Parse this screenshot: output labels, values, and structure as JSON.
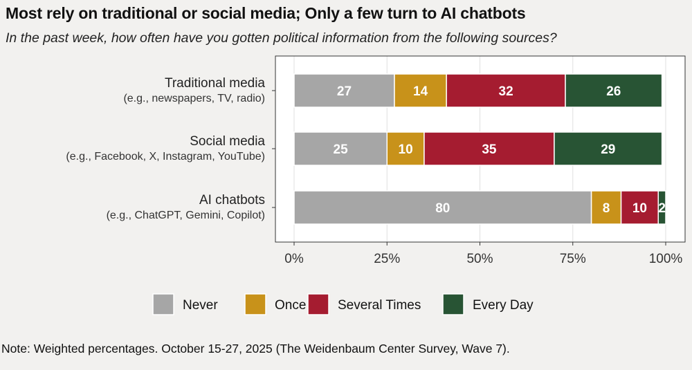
{
  "title": "Most rely on traditional or social media; Only a few turn to AI chatbots",
  "subtitle": "In the past week, how often have you gotten political information from the following sources?",
  "note": "Note: Weighted percentages. October 15-27, 2025 (The Weidenbaum Center Survey, Wave 7).",
  "chart_data": {
    "type": "bar",
    "orientation": "horizontal",
    "stacked": true,
    "title": "Most rely on traditional or social media; Only a few turn to AI chatbots",
    "subtitle": "In the past week, how often have you gotten political information from the following sources?",
    "categories": [
      {
        "label": "Traditional media",
        "sublabel": "(e.g., newspapers, TV, radio)"
      },
      {
        "label": "Social media",
        "sublabel": "(e.g., Facebook, X, Instagram, YouTube)"
      },
      {
        "label": "AI chatbots",
        "sublabel": "(e.g., ChatGPT, Gemini, Copilot)"
      }
    ],
    "series": [
      {
        "name": "Never",
        "color": "#a6a6a6",
        "values": [
          27,
          25,
          80
        ]
      },
      {
        "name": "Once",
        "color": "#c8921a",
        "values": [
          14,
          10,
          8
        ]
      },
      {
        "name": "Several Times",
        "color": "#a51c30",
        "values": [
          32,
          35,
          10
        ]
      },
      {
        "name": "Every Day",
        "color": "#285434",
        "values": [
          26,
          29,
          2
        ]
      }
    ],
    "xlabel": "",
    "ylabel": "",
    "xlim": [
      0,
      100
    ],
    "xticks": [
      "0%",
      "25%",
      "50%",
      "75%",
      "100%"
    ],
    "xtick_values": [
      0,
      25,
      50,
      75,
      100
    ],
    "grid": true,
    "legend_position": "bottom"
  }
}
